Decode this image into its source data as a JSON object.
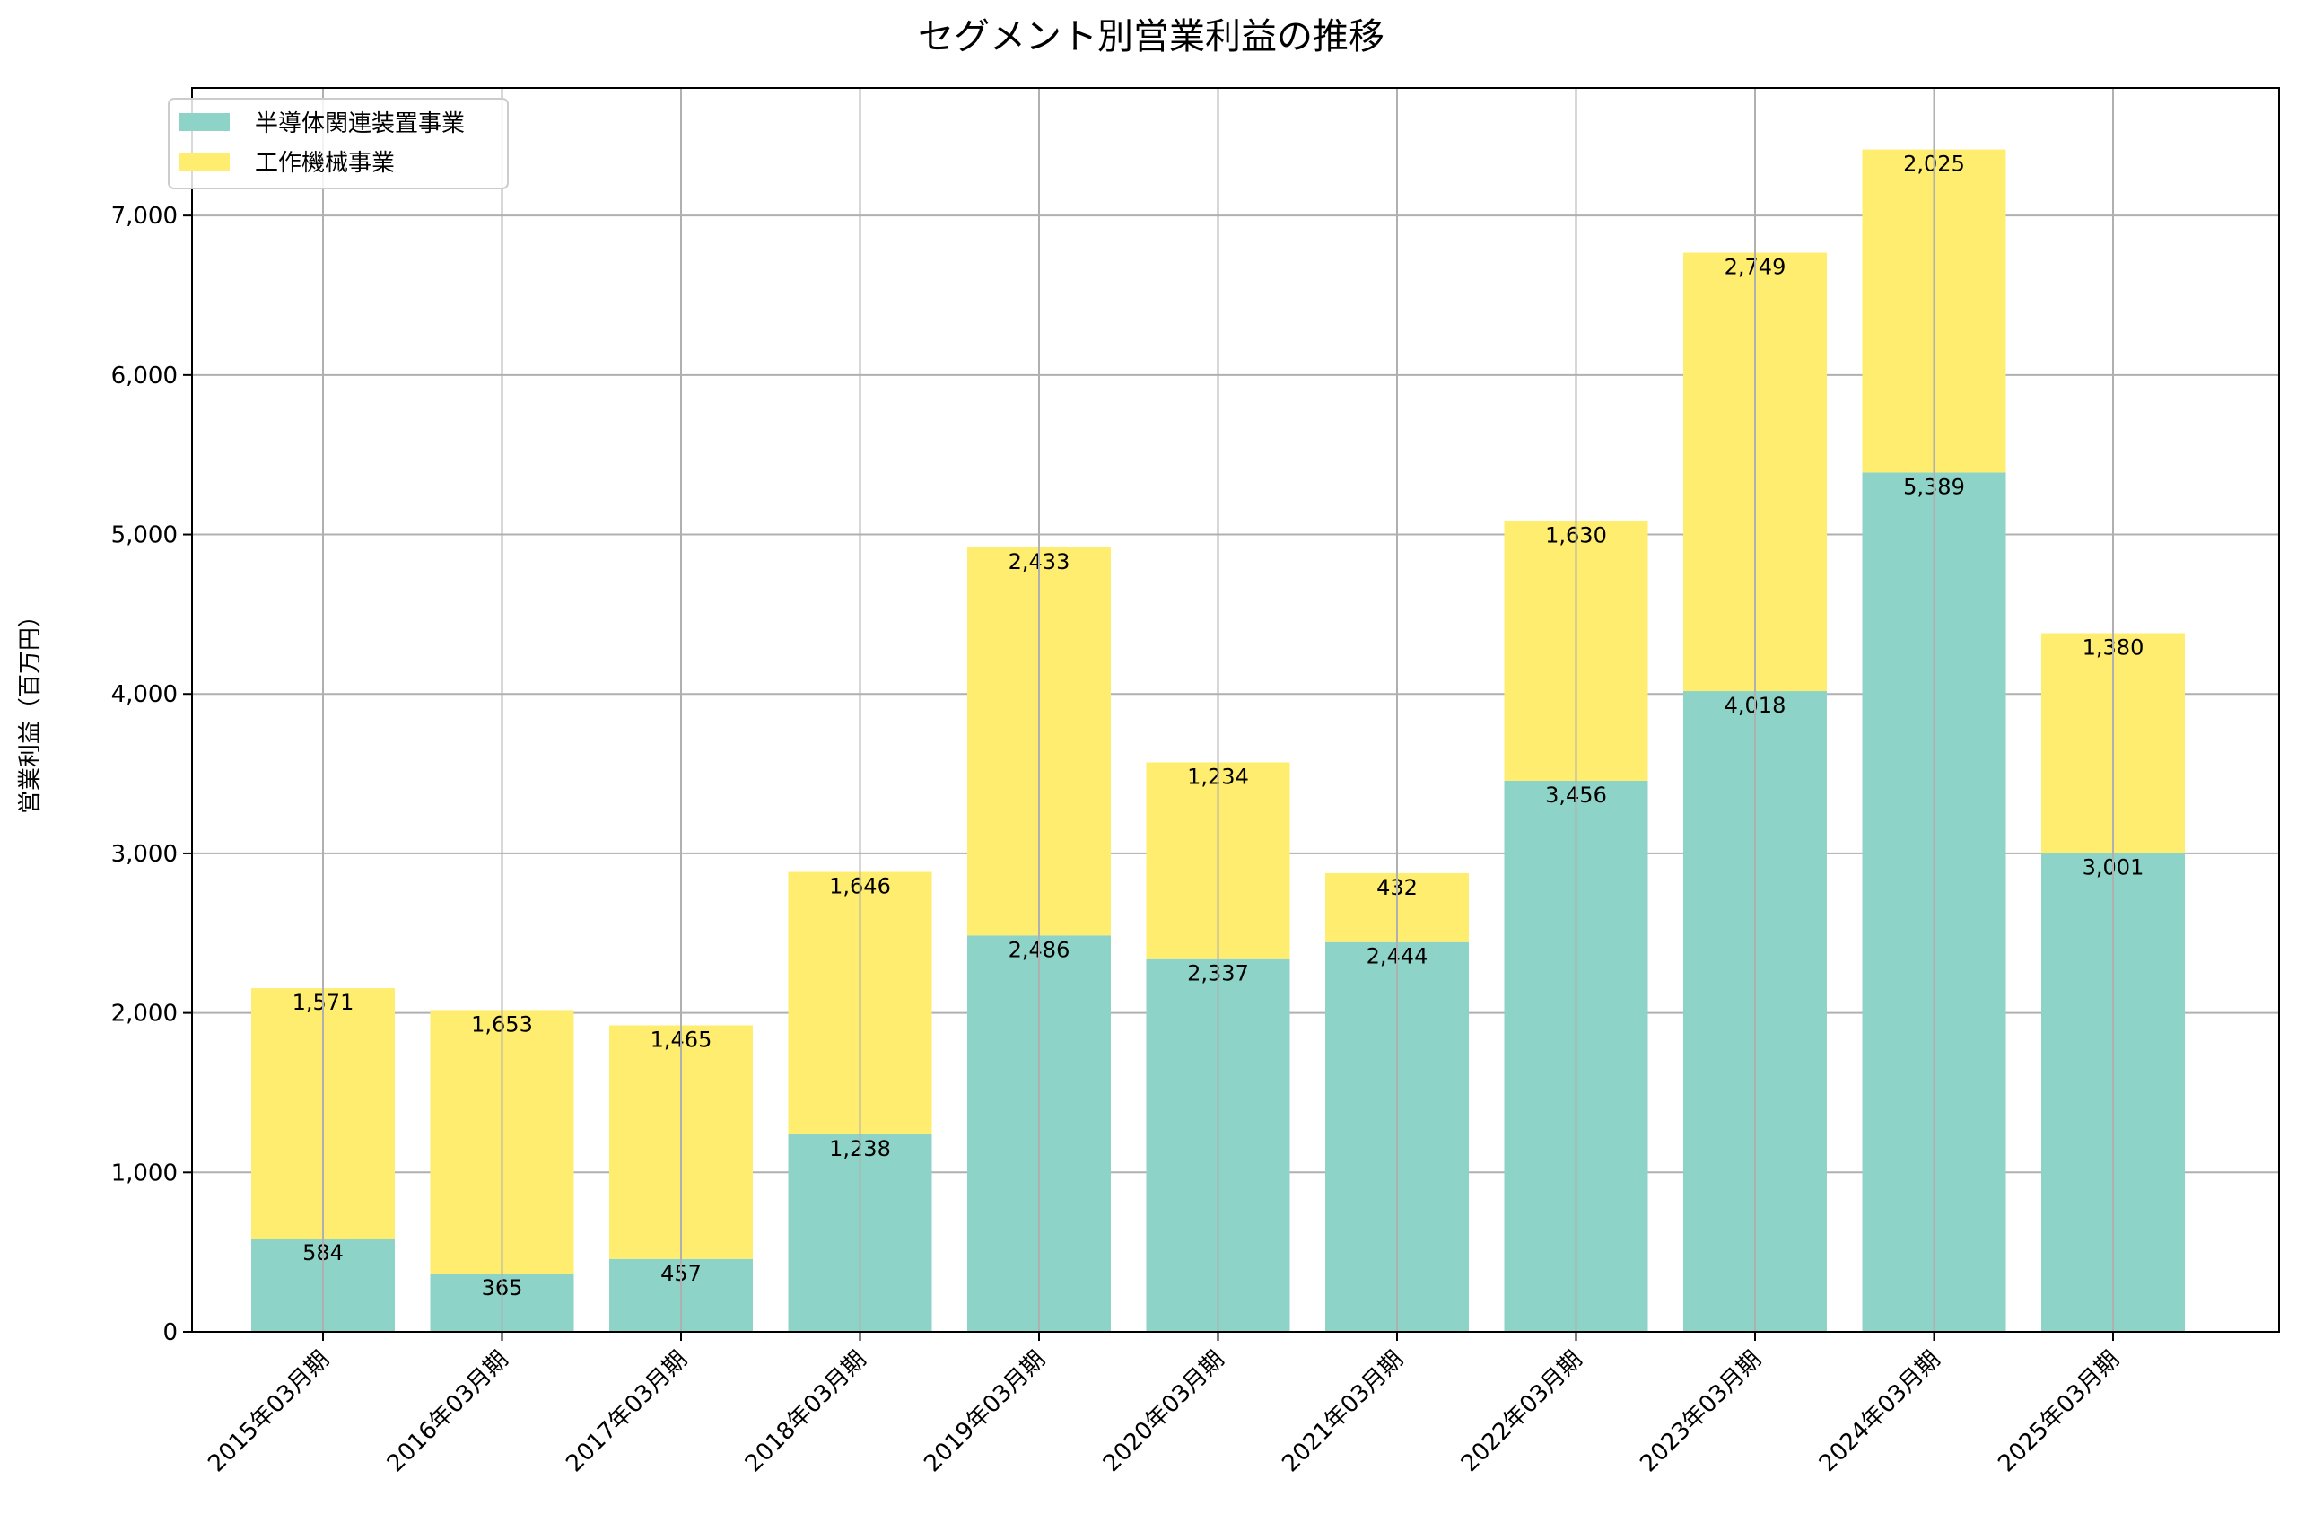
{
  "chart_data": {
    "type": "bar",
    "stacked": true,
    "title": "セグメント別営業利益の推移",
    "xlabel": "",
    "ylabel": "営業利益（百万円）",
    "ylim": [
      0,
      7800
    ],
    "yticks": [
      0,
      1000,
      2000,
      3000,
      4000,
      5000,
      6000,
      7000
    ],
    "ytick_labels": [
      "0",
      "1,000",
      "2,000",
      "3,000",
      "4,000",
      "5,000",
      "6,000",
      "7,000"
    ],
    "grid": true,
    "legend_position": "top-left",
    "categories": [
      "2015年03月期",
      "2016年03月期",
      "2017年03月期",
      "2018年03月期",
      "2019年03月期",
      "2020年03月期",
      "2021年03月期",
      "2022年03月期",
      "2023年03月期",
      "2024年03月期",
      "2025年03月期"
    ],
    "series": [
      {
        "name": "半導体関連装置事業",
        "color": "#8dd3c7",
        "values": [
          584,
          365,
          457,
          1238,
          2486,
          2337,
          2444,
          3456,
          4018,
          5389,
          3001
        ],
        "labels": [
          "584",
          "365",
          "457",
          "1,238",
          "2,486",
          "2,337",
          "2,444",
          "3,456",
          "4,018",
          "5,389",
          "3,001"
        ]
      },
      {
        "name": "工作機械事業",
        "color": "#ffed6f",
        "values": [
          1571,
          1653,
          1465,
          1646,
          2433,
          1234,
          432,
          1630,
          2749,
          2025,
          1380
        ],
        "labels": [
          "1,571",
          "1,653",
          "1,465",
          "1,646",
          "2,433",
          "1,234",
          "432",
          "1,630",
          "2,749",
          "2,025",
          "1,380"
        ]
      }
    ]
  }
}
